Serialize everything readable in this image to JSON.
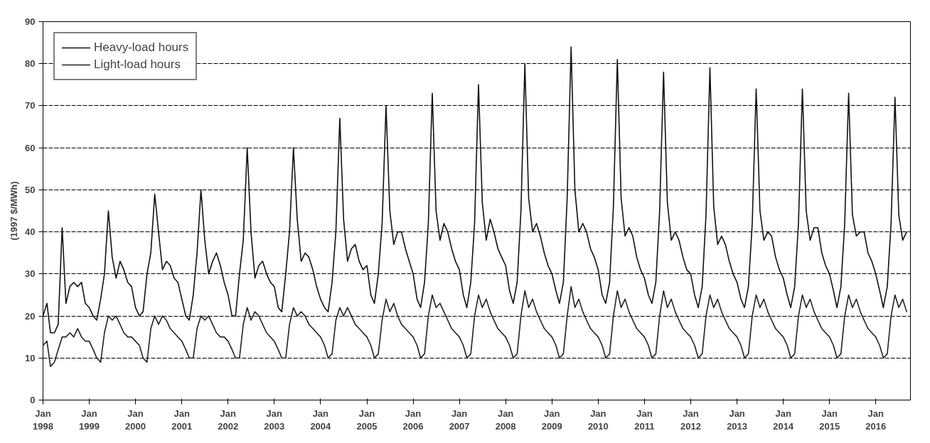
{
  "chart_data": {
    "type": "line",
    "ylabel": "(1997 $/MWh)",
    "x": [
      "1998-01",
      "1998-02",
      "1998-03",
      "1998-04",
      "1998-05",
      "1998-06",
      "1998-07",
      "1998-08",
      "1998-09",
      "1998-10",
      "1998-11",
      "1998-12",
      "1999-01",
      "1999-02",
      "1999-03",
      "1999-04",
      "1999-05",
      "1999-06",
      "1999-07",
      "1999-08",
      "1999-09",
      "1999-10",
      "1999-11",
      "1999-12",
      "2000-01",
      "2000-02",
      "2000-03",
      "2000-04",
      "2000-05",
      "2000-06",
      "2000-07",
      "2000-08",
      "2000-09",
      "2000-10",
      "2000-11",
      "2000-12",
      "2001-01",
      "2001-02",
      "2001-03",
      "2001-04",
      "2001-05",
      "2001-06",
      "2001-07",
      "2001-08",
      "2001-09",
      "2001-10",
      "2001-11",
      "2001-12",
      "2002-01",
      "2002-02",
      "2002-03",
      "2002-04",
      "2002-05",
      "2002-06",
      "2002-07",
      "2002-08",
      "2002-09",
      "2002-10",
      "2002-11",
      "2002-12",
      "2003-01",
      "2003-02",
      "2003-03",
      "2003-04",
      "2003-05",
      "2003-06",
      "2003-07",
      "2003-08",
      "2003-09",
      "2003-10",
      "2003-11",
      "2003-12",
      "2004-01",
      "2004-02",
      "2004-03",
      "2004-04",
      "2004-05",
      "2004-06",
      "2004-07",
      "2004-08",
      "2004-09",
      "2004-10",
      "2004-11",
      "2004-12",
      "2005-01",
      "2005-02",
      "2005-03",
      "2005-04",
      "2005-05",
      "2005-06",
      "2005-07",
      "2005-08",
      "2005-09",
      "2005-10",
      "2005-11",
      "2005-12",
      "2006-01",
      "2006-02",
      "2006-03",
      "2006-04",
      "2006-05",
      "2006-06",
      "2006-07",
      "2006-08",
      "2006-09",
      "2006-10",
      "2006-11",
      "2006-12",
      "2007-01",
      "2007-02",
      "2007-03",
      "2007-04",
      "2007-05",
      "2007-06",
      "2007-07",
      "2007-08",
      "2007-09",
      "2007-10",
      "2007-11",
      "2007-12",
      "2008-01",
      "2008-02",
      "2008-03",
      "2008-04",
      "2008-05",
      "2008-06",
      "2008-07",
      "2008-08",
      "2008-09",
      "2008-10",
      "2008-11",
      "2008-12",
      "2009-01",
      "2009-02",
      "2009-03",
      "2009-04",
      "2009-05",
      "2009-06",
      "2009-07",
      "2009-08",
      "2009-09",
      "2009-10",
      "2009-11",
      "2009-12",
      "2010-01",
      "2010-02",
      "2010-03",
      "2010-04",
      "2010-05",
      "2010-06",
      "2010-07",
      "2010-08",
      "2010-09",
      "2010-10",
      "2010-11",
      "2010-12",
      "2011-01",
      "2011-02",
      "2011-03",
      "2011-04",
      "2011-05",
      "2011-06",
      "2011-07",
      "2011-08",
      "2011-09",
      "2011-10",
      "2011-11",
      "2011-12",
      "2012-01",
      "2012-02",
      "2012-03",
      "2012-04",
      "2012-05",
      "2012-06",
      "2012-07",
      "2012-08",
      "2012-09",
      "2012-10",
      "2012-11",
      "2012-12",
      "2013-01",
      "2013-02",
      "2013-03",
      "2013-04",
      "2013-05",
      "2013-06",
      "2013-07",
      "2013-08",
      "2013-09",
      "2013-10",
      "2013-11",
      "2013-12",
      "2014-01",
      "2014-02",
      "2014-03",
      "2014-04",
      "2014-05",
      "2014-06",
      "2014-07",
      "2014-08",
      "2014-09",
      "2014-10",
      "2014-11",
      "2014-12",
      "2015-01",
      "2015-02",
      "2015-03",
      "2015-04",
      "2015-05",
      "2015-06",
      "2015-07",
      "2015-08",
      "2015-09",
      "2015-10",
      "2015-11",
      "2015-12",
      "2016-01",
      "2016-02",
      "2016-03",
      "2016-04",
      "2016-05",
      "2016-06",
      "2016-07",
      "2016-08",
      "2016-09"
    ],
    "series": [
      {
        "name": "Heavy-load hours",
        "color": "#111111",
        "values": [
          20,
          23,
          16,
          16,
          18,
          41,
          23,
          27,
          28,
          27,
          28,
          23,
          22,
          20,
          19,
          24,
          30,
          45,
          34,
          29,
          33,
          31,
          28,
          27,
          22,
          20,
          21,
          30,
          35,
          49,
          40,
          31,
          33,
          32,
          29,
          28,
          24,
          20,
          19,
          25,
          35,
          50,
          38,
          30,
          33,
          35,
          32,
          28,
          25,
          20,
          20,
          30,
          38,
          60,
          40,
          29,
          32,
          33,
          30,
          28,
          27,
          22,
          21,
          30,
          40,
          60,
          43,
          33,
          35,
          34,
          31,
          27,
          24,
          22,
          21,
          28,
          40,
          67,
          43,
          33,
          36,
          37,
          33,
          31,
          32,
          25,
          23,
          30,
          42,
          70,
          45,
          37,
          40,
          40,
          36,
          33,
          30,
          24,
          22,
          28,
          42,
          73,
          45,
          38,
          42,
          40,
          36,
          33,
          31,
          25,
          22,
          28,
          42,
          75,
          47,
          38,
          43,
          40,
          36,
          34,
          32,
          26,
          23,
          28,
          45,
          80,
          48,
          40,
          42,
          39,
          35,
          32,
          30,
          26,
          23,
          28,
          48,
          84,
          50,
          40,
          42,
          40,
          36,
          34,
          31,
          25,
          23,
          28,
          46,
          81,
          48,
          39,
          41,
          39,
          34,
          31,
          29,
          25,
          23,
          28,
          45,
          78,
          47,
          38,
          40,
          38,
          34,
          31,
          30,
          25,
          22,
          27,
          44,
          79,
          46,
          37,
          39,
          37,
          33,
          30,
          28,
          24,
          22,
          27,
          42,
          74,
          45,
          38,
          40,
          39,
          34,
          31,
          29,
          25,
          22,
          27,
          42,
          74,
          45,
          38,
          41,
          41,
          35,
          32,
          30,
          26,
          22,
          27,
          42,
          73,
          44,
          39,
          40,
          40,
          35,
          33,
          30,
          26,
          22,
          27,
          42,
          72,
          44,
          38,
          40
        ]
      },
      {
        "name": "Light-load hours",
        "color": "#222222",
        "values": [
          13,
          14,
          8,
          9,
          12,
          15,
          15,
          16,
          15,
          17,
          15,
          14,
          14,
          12,
          10,
          9,
          16,
          20,
          19,
          20,
          18,
          16,
          15,
          15,
          14,
          13,
          10,
          9,
          17,
          20,
          18,
          20,
          19,
          17,
          16,
          15,
          14,
          12,
          10,
          10,
          17,
          20,
          19,
          20,
          18,
          16,
          15,
          15,
          14,
          12,
          10,
          10,
          18,
          22,
          19,
          21,
          20,
          18,
          16,
          15,
          14,
          12,
          10,
          10,
          18,
          22,
          20,
          21,
          20,
          18,
          17,
          16,
          15,
          13,
          10,
          11,
          19,
          22,
          20,
          22,
          20,
          18,
          17,
          16,
          15,
          13,
          10,
          11,
          19,
          24,
          21,
          23,
          20,
          18,
          17,
          16,
          15,
          13,
          10,
          11,
          20,
          25,
          22,
          23,
          21,
          19,
          17,
          16,
          15,
          13,
          10,
          11,
          20,
          25,
          22,
          24,
          21,
          19,
          17,
          16,
          15,
          13,
          10,
          11,
          20,
          26,
          22,
          24,
          21,
          19,
          17,
          16,
          15,
          13,
          10,
          11,
          20,
          27,
          22,
          24,
          21,
          19,
          17,
          16,
          15,
          13,
          10,
          11,
          20,
          26,
          22,
          24,
          21,
          19,
          17,
          16,
          15,
          13,
          10,
          11,
          20,
          26,
          22,
          24,
          21,
          19,
          17,
          16,
          15,
          13,
          10,
          11,
          20,
          25,
          22,
          24,
          21,
          19,
          17,
          16,
          15,
          13,
          10,
          11,
          20,
          25,
          22,
          24,
          21,
          19,
          17,
          16,
          15,
          13,
          10,
          11,
          20,
          25,
          22,
          24,
          21,
          19,
          17,
          16,
          15,
          13,
          10,
          11,
          20,
          25,
          22,
          24,
          21,
          19,
          17,
          16,
          15,
          13,
          10,
          11,
          20,
          25,
          22,
          24,
          21
        ]
      }
    ],
    "xlim": [
      "1998-01",
      "2016-10"
    ],
    "xticks": [
      {
        "value": "1998-01",
        "label": "Jan\n1998"
      },
      {
        "value": "1999-01",
        "label": "Jan\n1999"
      },
      {
        "value": "2000-01",
        "label": "Jan\n2000"
      },
      {
        "value": "2001-01",
        "label": "Jan\n2001"
      },
      {
        "value": "2002-01",
        "label": "Jan\n2002"
      },
      {
        "value": "2003-01",
        "label": "Jan\n2003"
      },
      {
        "value": "2004-01",
        "label": "Jan\n2004"
      },
      {
        "value": "2005-01",
        "label": "Jan\n2005"
      },
      {
        "value": "2006-01",
        "label": "Jan\n2006"
      },
      {
        "value": "2007-01",
        "label": "Jan\n2007"
      },
      {
        "value": "2008-01",
        "label": "Jan\n2008"
      },
      {
        "value": "2009-01",
        "label": "Jan\n2009"
      },
      {
        "value": "2010-01",
        "label": "Jan\n2010"
      },
      {
        "value": "2011-01",
        "label": "Jan\n2011"
      },
      {
        "value": "2012-01",
        "label": "Jan\n2012"
      },
      {
        "value": "2013-01",
        "label": "Jan\n2013"
      },
      {
        "value": "2014-01",
        "label": "Jan\n2014"
      },
      {
        "value": "2015-01",
        "label": "Jan\n2015"
      },
      {
        "value": "2016-01",
        "label": "Jan\n2016"
      }
    ],
    "ylim": [
      0,
      90
    ],
    "yticks": [
      0,
      10,
      20,
      30,
      40,
      50,
      60,
      70,
      80,
      90
    ],
    "grid": "y",
    "legend": "top left",
    "line_style": "solid"
  }
}
